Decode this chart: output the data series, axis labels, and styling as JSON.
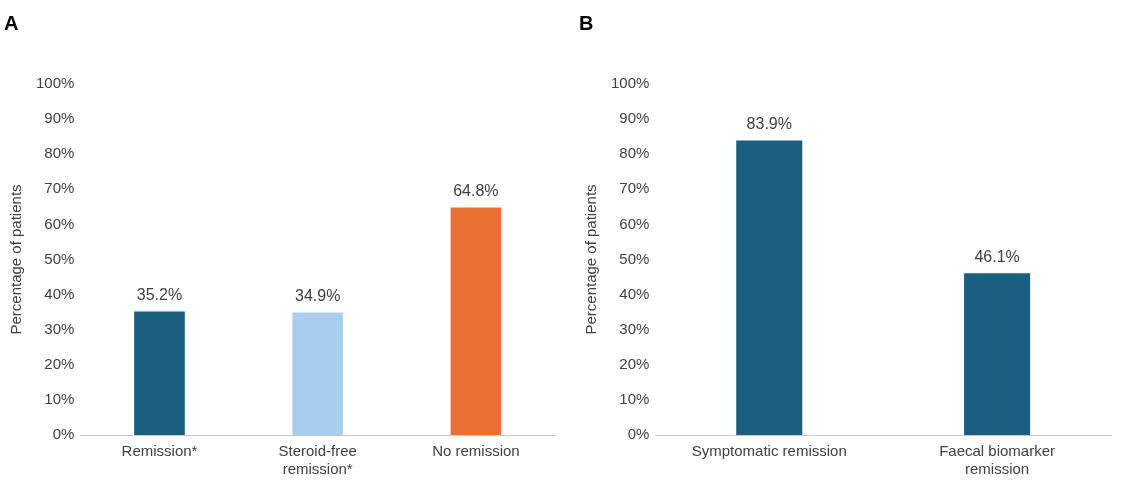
{
  "chart_data": [
    {
      "type": "bar",
      "title": "A",
      "ylabel": "Percentage of patients",
      "categories": [
        "Remission*",
        "Steroid-free remission*",
        "No remission"
      ],
      "values": [
        35.2,
        34.9,
        64.8
      ],
      "colors": [
        "#1a5e80",
        "#a9cdec",
        "#e97132"
      ],
      "value_labels": [
        "35.2%",
        "34.9%",
        "64.8%"
      ],
      "ylim": [
        0,
        100
      ],
      "yticks": [
        {
          "value": 0,
          "label": "0%"
        },
        {
          "value": 10,
          "label": "10%"
        },
        {
          "value": 20,
          "label": "20%"
        },
        {
          "value": 30,
          "label": "30%"
        },
        {
          "value": 40,
          "label": "40%"
        },
        {
          "value": 50,
          "label": "50%"
        },
        {
          "value": 60,
          "label": "60%"
        },
        {
          "value": 70,
          "label": "70%"
        },
        {
          "value": 80,
          "label": "80%"
        },
        {
          "value": 90,
          "label": "90%"
        },
        {
          "value": 100,
          "label": "100%"
        }
      ],
      "grid": false,
      "legend": false
    },
    {
      "type": "bar",
      "title": "B",
      "ylabel": "Percentage of patients",
      "categories": [
        "Symptomatic remission",
        "Faecal biomarker remission"
      ],
      "values": [
        83.9,
        46.1
      ],
      "colors": [
        "#1a5e80",
        "#1a5e80"
      ],
      "value_labels": [
        "83.9%",
        "46.1%"
      ],
      "ylim": [
        0,
        100
      ],
      "yticks": [
        {
          "value": 0,
          "label": "0%"
        },
        {
          "value": 10,
          "label": "10%"
        },
        {
          "value": 20,
          "label": "20%"
        },
        {
          "value": 30,
          "label": "30%"
        },
        {
          "value": 40,
          "label": "40%"
        },
        {
          "value": 50,
          "label": "50%"
        },
        {
          "value": 60,
          "label": "60%"
        },
        {
          "value": 70,
          "label": "70%"
        },
        {
          "value": 80,
          "label": "80%"
        },
        {
          "value": 90,
          "label": "90%"
        },
        {
          "value": 100,
          "label": "100%"
        }
      ],
      "grid": false,
      "legend": false
    }
  ]
}
